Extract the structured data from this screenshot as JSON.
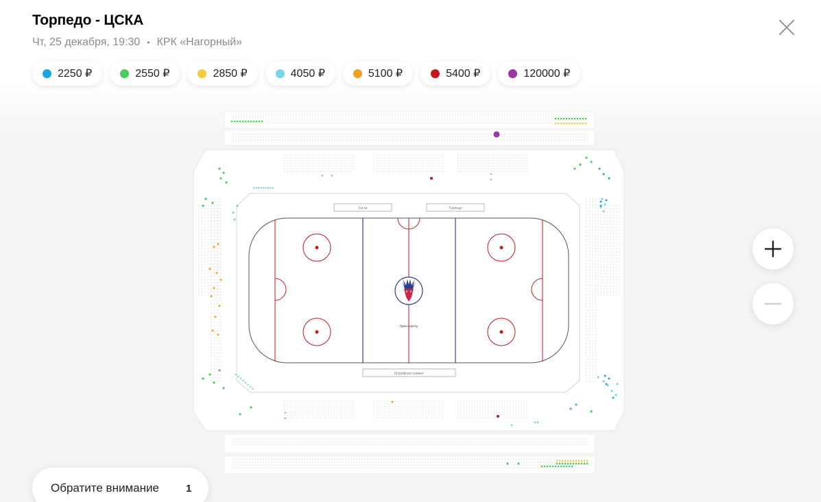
{
  "event": {
    "title": "Торпедо - ЦСКА",
    "date": "Чт, 25 декабря, 19:30",
    "separator": "•",
    "venue": "КРК «Нагорный»"
  },
  "close_icon": "close-icon",
  "prices": [
    {
      "label": "2250 ₽",
      "color": "#1aa7e0"
    },
    {
      "label": "2550 ₽",
      "color": "#4cca5a"
    },
    {
      "label": "2850 ₽",
      "color": "#f3cd3c"
    },
    {
      "label": "4050 ₽",
      "color": "#78d6e8"
    },
    {
      "label": "5100 ₽",
      "color": "#f0a020"
    },
    {
      "label": "5400 ₽",
      "color": "#c8161d"
    },
    {
      "label": "120000 ₽",
      "color": "#9b35a8"
    }
  ],
  "rink": {
    "bench_left": "Гости",
    "bench_right": "Торпедо",
    "penalty_box": "Штрафная скамья",
    "stand_label": "Пресс-центр",
    "accent_line": "#c8161d",
    "blue_line": "#2c3f8f"
  },
  "zoom": {
    "in_icon": "plus-icon",
    "out_icon": "minus-icon"
  },
  "attention": {
    "label": "Обратите внимание",
    "count": "1"
  }
}
